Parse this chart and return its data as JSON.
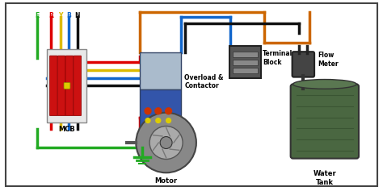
{
  "bg_color": "#ffffff",
  "border_color": "#444444",
  "wire_labels": [
    "E",
    "R",
    "Y",
    "B",
    "N"
  ],
  "wire_colors": [
    "#22aa22",
    "#dd0000",
    "#ddbb00",
    "#1166cc",
    "#111111"
  ],
  "orange_wire": "#cc6600",
  "blue_wire": "#1166cc",
  "black_wire": "#111111",
  "components": {
    "mcb": {
      "label": "MCB",
      "color_body": "#eeeeee",
      "color_switch": "#cc2222"
    },
    "contactor": {
      "label": "Overload &\nContactor",
      "color_top": "#aaaacc",
      "color_bot": "#3355aa"
    },
    "terminal": {
      "label": "Terminal\nBlock"
    },
    "flow_meter": {
      "label": "Flow\nMeter"
    },
    "water_tank": {
      "label": "Water\nTank",
      "color": "#4a6741"
    },
    "motor": {
      "label": "Motor"
    }
  }
}
